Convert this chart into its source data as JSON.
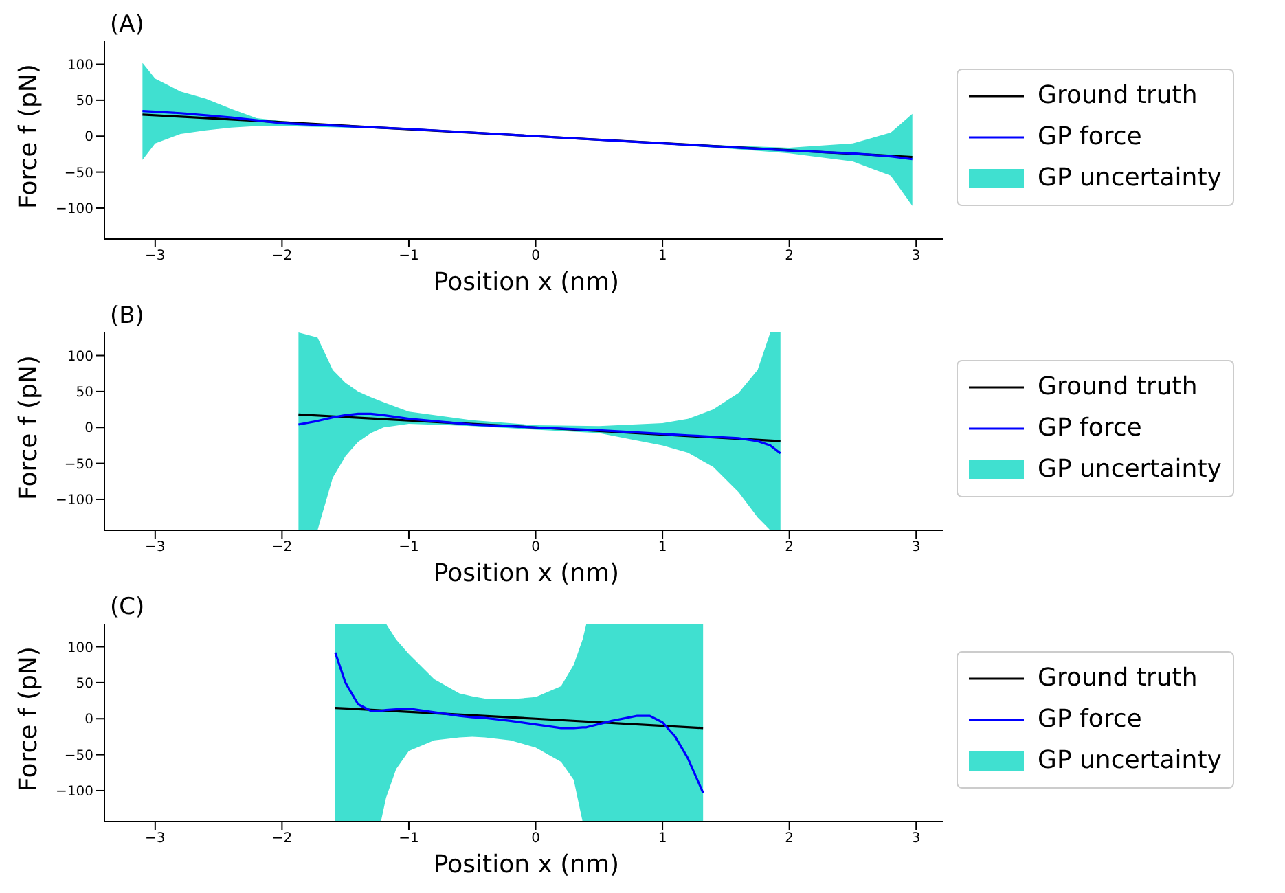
{
  "chart_data": [
    {
      "type": "line",
      "title": "(A)",
      "xlabel": "Position x (nm)",
      "ylabel": "Force f (pN)",
      "xlim": [
        -3.4,
        3.21
      ],
      "xticks": [
        -3,
        -2,
        -1,
        0,
        1,
        2,
        3
      ],
      "ylim": [
        -143,
        132
      ],
      "yticks": [
        -100,
        -50,
        0,
        50,
        100
      ],
      "grid": false,
      "legend": "right",
      "annotations": [
        "GP uncertainty"
      ],
      "series": [
        {
          "name": "Ground truth",
          "color": "#000000",
          "x": [
            -3.1,
            0,
            2.97
          ],
          "values": [
            30,
            0,
            -29
          ]
        },
        {
          "name": "GP force",
          "color": "#0000ff",
          "x": [
            -3.1,
            -3,
            -2.8,
            -2.6,
            -2.4,
            -2.2,
            -2,
            -1.5,
            -1,
            -0.5,
            0,
            0.5,
            1,
            1.5,
            2,
            2.5,
            2.8,
            2.97
          ],
          "values": [
            35,
            34,
            32,
            29,
            26,
            22,
            18,
            14,
            10,
            5,
            0,
            -5,
            -10,
            -15,
            -20,
            -24,
            -28,
            -32
          ],
          "lower": [
            -33,
            -10,
            3,
            8,
            12,
            14,
            14,
            12,
            9,
            4,
            -1,
            -6,
            -11,
            -17,
            -24,
            -35,
            -55,
            -97
          ],
          "upper": [
            102,
            80,
            62,
            52,
            38,
            25,
            21,
            15,
            11,
            6,
            1,
            -4,
            -9,
            -13,
            -16,
            -10,
            5,
            31
          ]
        }
      ]
    },
    {
      "type": "line",
      "title": "(B)",
      "xlabel": "Position x (nm)",
      "ylabel": "Force f (pN)",
      "xlim": [
        -3.4,
        3.21
      ],
      "xticks": [
        -3,
        -2,
        -1,
        0,
        1,
        2,
        3
      ],
      "ylim": [
        -143,
        132
      ],
      "yticks": [
        -100,
        -50,
        0,
        50,
        100
      ],
      "grid": false,
      "legend": "right",
      "annotations": [
        "GP uncertainty"
      ],
      "series": [
        {
          "name": "Ground truth",
          "color": "#000000",
          "x": [
            -1.87,
            0,
            1.93
          ],
          "values": [
            18,
            0,
            -19
          ]
        },
        {
          "name": "GP force",
          "color": "#0000ff",
          "x": [
            -1.87,
            -1.72,
            -1.6,
            -1.5,
            -1.4,
            -1.3,
            -1.2,
            -1,
            -0.5,
            0,
            0.5,
            1,
            1.2,
            1.4,
            1.6,
            1.75,
            1.85,
            1.93
          ],
          "values": [
            4,
            9,
            14,
            17,
            19,
            19,
            17,
            12,
            4,
            0,
            -4,
            -9,
            -11,
            -13,
            -15,
            -19,
            -25,
            -36
          ],
          "lower": [
            -143,
            -143,
            -70,
            -40,
            -20,
            -8,
            0,
            5,
            2,
            -3,
            -8,
            -25,
            -35,
            -55,
            -90,
            -125,
            -143,
            -143
          ],
          "upper": [
            132,
            125,
            80,
            62,
            50,
            42,
            35,
            22,
            10,
            3,
            2,
            6,
            12,
            25,
            48,
            80,
            132,
            132
          ]
        }
      ]
    },
    {
      "type": "line",
      "title": "(C)",
      "xlabel": "Position x (nm)",
      "ylabel": "Force f (pN)",
      "xlim": [
        -3.4,
        3.21
      ],
      "xticks": [
        -3,
        -2,
        -1,
        0,
        1,
        2,
        3
      ],
      "ylim": [
        -143,
        132
      ],
      "yticks": [
        -100,
        -50,
        0,
        50,
        100
      ],
      "grid": false,
      "legend": "right",
      "annotations": [
        "GP uncertainty"
      ],
      "series": [
        {
          "name": "Ground truth",
          "color": "#000000",
          "x": [
            -1.58,
            0,
            1.32
          ],
          "values": [
            15,
            0,
            -13
          ]
        },
        {
          "name": "GP force",
          "color": "#0000ff",
          "x": [
            -1.58,
            -1.5,
            -1.4,
            -1.3,
            -1.22,
            -1.18,
            -1.1,
            -1,
            -0.8,
            -0.6,
            -0.5,
            -0.4,
            -0.2,
            0,
            0.2,
            0.3,
            0.37,
            0.4,
            0.6,
            0.8,
            0.9,
            1,
            1.1,
            1.2,
            1.32
          ],
          "values": [
            92,
            50,
            20,
            11,
            11,
            12,
            13,
            14,
            9,
            4,
            2,
            1,
            -3,
            -8,
            -13,
            -13,
            -12,
            -12,
            -3,
            4,
            4,
            -5,
            -25,
            -55,
            -103
          ],
          "lower": [
            -143,
            -143,
            -143,
            -143,
            -143,
            -110,
            -70,
            -45,
            -30,
            -26,
            -25,
            -26,
            -30,
            -40,
            -60,
            -85,
            -143,
            -143,
            -143,
            -143,
            -143,
            -143,
            -143,
            -143,
            -143
          ],
          "upper": [
            132,
            132,
            132,
            132,
            132,
            132,
            110,
            90,
            55,
            35,
            31,
            28,
            27,
            30,
            45,
            75,
            110,
            132,
            132,
            132,
            132,
            132,
            132,
            132,
            132
          ]
        }
      ]
    }
  ]
}
